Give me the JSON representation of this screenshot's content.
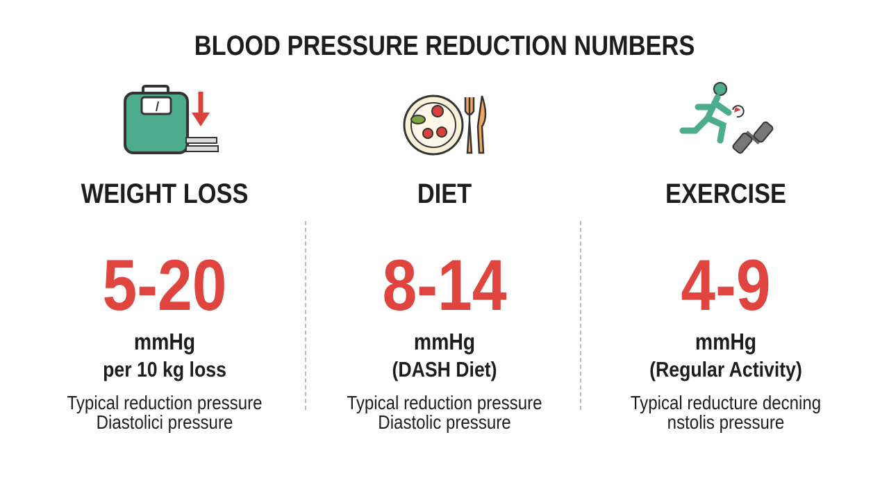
{
  "title": "BLOOD PRESSURE REDUCTION NUMBERS",
  "columns": [
    {
      "heading": "WEIGHT LOSS",
      "value": "5-20",
      "unit": "mmHg",
      "note": "per 10 kg loss",
      "description": [
        "Typical reduction pressure",
        "Diastolici pressure"
      ]
    },
    {
      "heading": "DIET",
      "value": "8-14",
      "unit": "mmHg",
      "note": "(DASH Diet)",
      "description": [
        "Typical reduction pressure",
        "Diastolic pressure"
      ]
    },
    {
      "heading": "EXERCISE",
      "value": "4-9",
      "unit": "mmHg",
      "note": "(Regular Activity)",
      "description": [
        "Typical reducture decning",
        "nstolis pressure"
      ]
    }
  ]
}
